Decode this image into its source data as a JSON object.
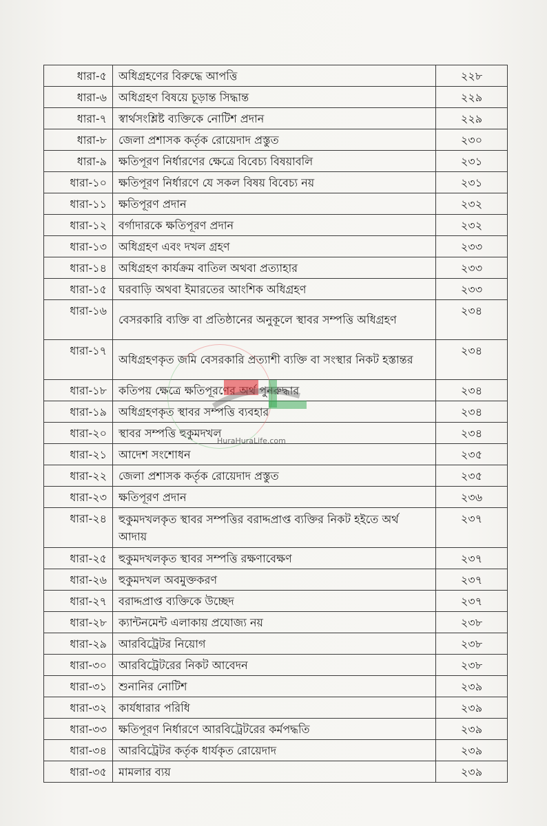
{
  "rows": [
    {
      "section": "ধারা-৫",
      "title": "অধিগ্রহণের বিরুদ্ধে আপত্তি",
      "page": "২২৮"
    },
    {
      "section": "ধারা-৬",
      "title": "অধিগ্রহণ বিষয়ে চূড়ান্ত সিদ্ধান্ত",
      "page": "২২৯"
    },
    {
      "section": "ধারা-৭",
      "title": "স্বার্থসংশ্লিষ্ট ব্যক্তিকে নোটিশ প্রদান",
      "page": "২২৯"
    },
    {
      "section": "ধারা-৮",
      "title": "জেলা প্রশাসক কর্তৃক রোয়েদাদ প্রস্তুত",
      "page": "২৩০"
    },
    {
      "section": "ধারা-৯",
      "title": "ক্ষতিপূরণ নির্ধারণের ক্ষেত্রে বিবেচ্য বিষয়াবলি",
      "page": "২৩১"
    },
    {
      "section": "ধারা-১০",
      "title": "ক্ষতিপূরণ নির্ধারণে যে সকল বিষয় বিবেচ্য নয়",
      "page": "২৩১"
    },
    {
      "section": "ধারা-১১",
      "title": "ক্ষতিপূরণ প্রদান",
      "page": "২৩২"
    },
    {
      "section": "ধারা-১২",
      "title": "বর্গাদারকে ক্ষতিপূরণ প্রদান",
      "page": "২৩২"
    },
    {
      "section": "ধারা-১৩",
      "title": "অধিগ্রহণ এবং দখল গ্রহণ",
      "page": "২৩৩"
    },
    {
      "section": "ধারা-১৪",
      "title": "অধিগ্রহণ কার্যক্রম বাতিল অথবা প্রত্যাহার",
      "page": "২৩৩"
    },
    {
      "section": "ধারা-১৫",
      "title": "ঘরবাড়ি অথবা ইমারতের আংশিক অধিগ্রহণ",
      "page": "২৩৩"
    },
    {
      "section": "ধারা-১৬",
      "title": "বেসরকারি ব্যক্তি বা প্রতিষ্ঠানের অনুকূলে স্থাবর সম্পত্তি অধিগ্রহণ",
      "page": "২৩৪"
    },
    {
      "section": "ধারা-১৭",
      "title": "অধিগ্রহণকৃত জমি বেসরকারি প্রত্যাশী ব্যক্তি বা সংস্থার নিকট হস্তান্তর",
      "page": "২৩৪"
    },
    {
      "section": "ধারা-১৮",
      "title": "কতিপয় ক্ষেত্রে ক্ষতিপূরণের অর্থ পুনরুদ্ধার",
      "page": "২৩৪"
    },
    {
      "section": "ধারা-১৯",
      "title": "অধিগ্রহণকৃত স্থাবর সম্পত্তি ব্যবহার",
      "page": "২৩৪"
    },
    {
      "section": "ধারা-২০",
      "title": "স্থাবর সম্পত্তি হুকুমদখল",
      "page": "২৩৪"
    },
    {
      "section": "ধারা-২১",
      "title": "আদেশ সংশোধন",
      "page": "২৩৫"
    },
    {
      "section": "ধারা-২২",
      "title": "জেলা প্রশাসক কর্তৃক রোয়েদাদ প্রস্তুত",
      "page": "২৩৫"
    },
    {
      "section": "ধারা-২৩",
      "title": "ক্ষতিপূরণ প্রদান",
      "page": "২৩৬"
    },
    {
      "section": "ধারা-২৪",
      "title": "হুকুমদখলকৃত স্থাবর সম্পত্তির বরাদ্দপ্রাপ্ত ব্যক্তির নিকট হইতে অর্থ আদায়",
      "page": "২৩৭"
    },
    {
      "section": "ধারা-২৫",
      "title": "হুকুমদখলকৃত স্থাবর সম্পত্তি রক্ষণাবেক্ষণ",
      "page": "২৩৭"
    },
    {
      "section": "ধারা-২৬",
      "title": "হুকুমদখল অবমুক্তকরণ",
      "page": "২৩৭"
    },
    {
      "section": "ধারা-২৭",
      "title": "বরাদ্দপ্রাপ্ত ব্যক্তিকে উচ্ছেদ",
      "page": "২৩৭"
    },
    {
      "section": "ধারা-২৮",
      "title": "ক্যান্টনমেন্ট এলাকায় প্রযোজ্য নয়",
      "page": "২৩৮"
    },
    {
      "section": "ধারা-২৯",
      "title": "আরবিট্রেটর নিয়োগ",
      "page": "২৩৮"
    },
    {
      "section": "ধারা-৩০",
      "title": "আরবিট্রেটরের নিকট আবেদন",
      "page": "২৩৮"
    },
    {
      "section": "ধারা-৩১",
      "title": "শুনানির নোটিশ",
      "page": "২৩৯"
    },
    {
      "section": "ধারা-৩২",
      "title": "কার্যধারার পরিধি",
      "page": "২৩৯"
    },
    {
      "section": "ধারা-৩৩",
      "title": "ক্ষতিপূরণ নির্ধারণে আরবিট্রেটরের কর্মপদ্ধতি",
      "page": "২৩৯"
    },
    {
      "section": "ধারা-৩৪",
      "title": "আরবিট্রেটর কর্তৃক ধার্যকৃত রোয়েদাদ",
      "page": "২৩৯"
    },
    {
      "section": "ধারা-৩৫",
      "title": "মামলার ব্যয়",
      "page": "২৩৯"
    }
  ],
  "double_rows": [
    11,
    12,
    19
  ],
  "watermark": {
    "text": "HuraHuraLife.com",
    "colors": [
      "#e2262e",
      "#2fa84f"
    ]
  }
}
